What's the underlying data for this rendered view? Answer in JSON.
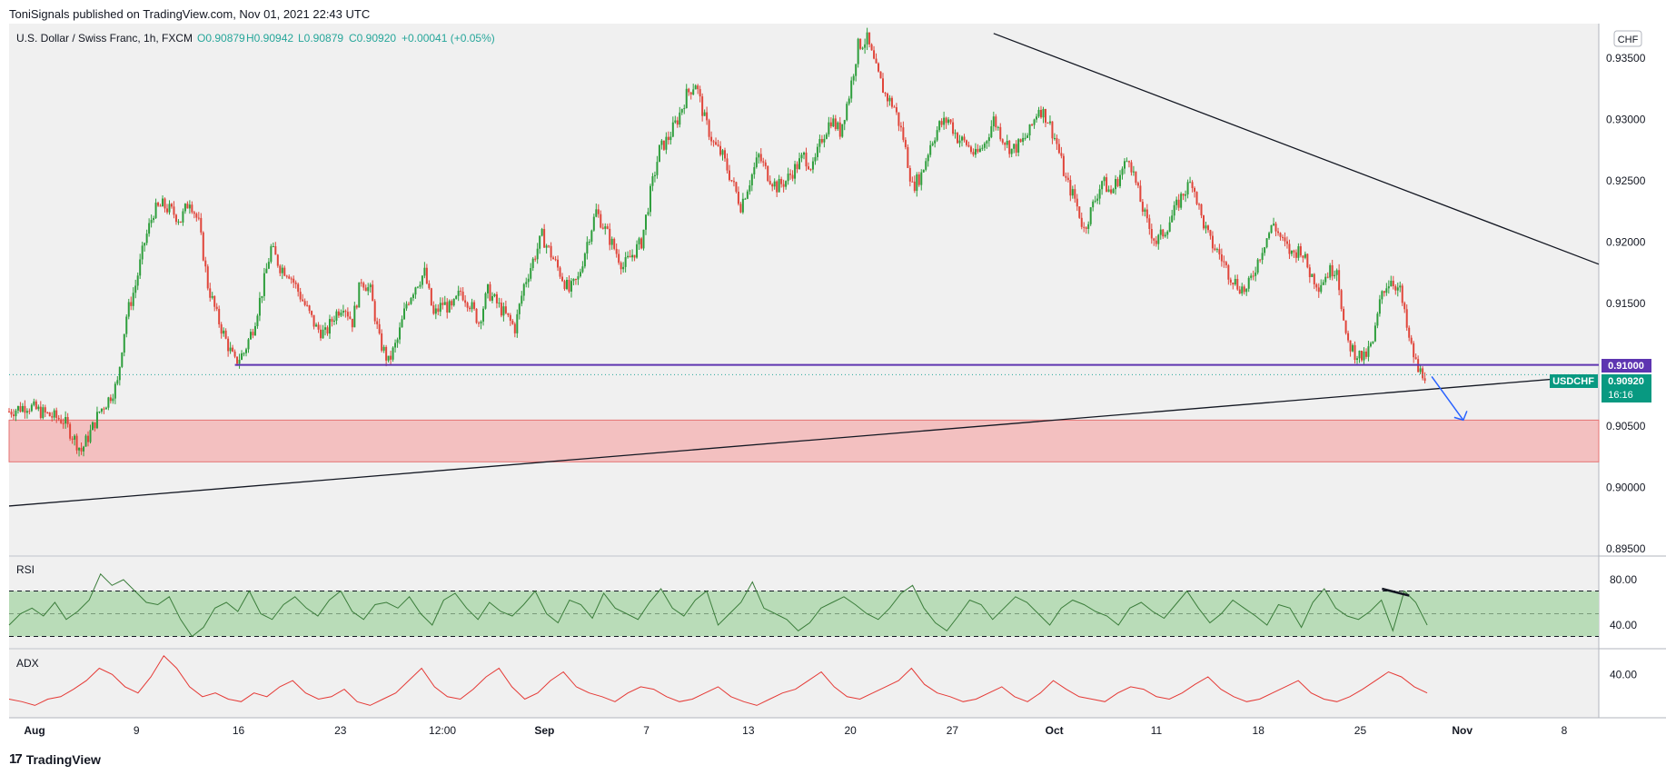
{
  "header": {
    "publish_line": "ToniSignals published on TradingView.com, Nov 01, 2021 22:43 UTC"
  },
  "footer": {
    "brand_text": "TradingView",
    "logo": "tradingview-logo-icon"
  },
  "chart_data": {
    "type": "candlestick",
    "symbol_title": "U.S. Dollar / Swiss Franc, 1h, FXCM",
    "ohlc": {
      "o_label": "O0.90879",
      "h_label": "H0.90942",
      "l_label": "L0.90879",
      "c_label": "C0.90920",
      "change_label": "+0.00041 (+0.05%)"
    },
    "currency_label": "CHF",
    "y_axis": {
      "ticks": [
        "0.93500",
        "0.93000",
        "0.92500",
        "0.92000",
        "0.91500",
        "0.91000",
        "0.90500",
        "0.90000",
        "0.89500"
      ],
      "range": [
        0.8945,
        0.9378
      ]
    },
    "x_axis": {
      "labels": [
        "Aug",
        "9",
        "16",
        "23",
        "12:00",
        "Sep",
        "7",
        "13",
        "20",
        "27",
        "Oct",
        "11",
        "18",
        "25",
        "Nov",
        "8"
      ],
      "bold": [
        "Aug",
        "Sep",
        "Oct",
        "Nov"
      ]
    },
    "price_path": [
      [
        0,
        0.9062
      ],
      [
        2,
        0.9067
      ],
      [
        4,
        0.906
      ],
      [
        6,
        0.9055
      ],
      [
        8,
        0.903
      ],
      [
        9,
        0.9045
      ],
      [
        10,
        0.9062
      ],
      [
        11,
        0.9072
      ],
      [
        12,
        0.9085
      ],
      [
        12.5,
        0.9115
      ],
      [
        13,
        0.914
      ],
      [
        14,
        0.9165
      ],
      [
        15,
        0.92
      ],
      [
        16,
        0.9225
      ],
      [
        17,
        0.923
      ],
      [
        18,
        0.9225
      ],
      [
        19,
        0.9218
      ],
      [
        20,
        0.9235
      ],
      [
        21,
        0.9215
      ],
      [
        22,
        0.9165
      ],
      [
        23,
        0.914
      ],
      [
        24,
        0.912
      ],
      [
        25,
        0.9102
      ],
      [
        26,
        0.911
      ],
      [
        27,
        0.913
      ],
      [
        28,
        0.916
      ],
      [
        29,
        0.9195
      ],
      [
        30,
        0.918
      ],
      [
        31,
        0.9175
      ],
      [
        32,
        0.916
      ],
      [
        33,
        0.9145
      ],
      [
        34,
        0.913
      ],
      [
        35,
        0.9125
      ],
      [
        36,
        0.914
      ],
      [
        37,
        0.915
      ],
      [
        38,
        0.9135
      ],
      [
        39,
        0.917
      ],
      [
        40,
        0.916
      ],
      [
        41,
        0.912
      ],
      [
        42,
        0.9102
      ],
      [
        43,
        0.912
      ],
      [
        44,
        0.915
      ],
      [
        45,
        0.9165
      ],
      [
        46,
        0.9175
      ],
      [
        47,
        0.914
      ],
      [
        48,
        0.915
      ],
      [
        49,
        0.9145
      ],
      [
        50,
        0.916
      ],
      [
        51,
        0.915
      ],
      [
        52,
        0.9135
      ],
      [
        53,
        0.916
      ],
      [
        54,
        0.915
      ],
      [
        55,
        0.914
      ],
      [
        56,
        0.913
      ],
      [
        57,
        0.9165
      ],
      [
        58,
        0.9185
      ],
      [
        59,
        0.9205
      ],
      [
        60,
        0.919
      ],
      [
        61,
        0.9175
      ],
      [
        62,
        0.916
      ],
      [
        63,
        0.917
      ],
      [
        64,
        0.92
      ],
      [
        65,
        0.9225
      ],
      [
        66,
        0.921
      ],
      [
        67,
        0.9195
      ],
      [
        68,
        0.918
      ],
      [
        69,
        0.919
      ],
      [
        70,
        0.92
      ],
      [
        71,
        0.924
      ],
      [
        72,
        0.9275
      ],
      [
        73,
        0.9285
      ],
      [
        74,
        0.93
      ],
      [
        75,
        0.932
      ],
      [
        76,
        0.933
      ],
      [
        77,
        0.93
      ],
      [
        78,
        0.928
      ],
      [
        79,
        0.927
      ],
      [
        80,
        0.925
      ],
      [
        81,
        0.923
      ],
      [
        82,
        0.925
      ],
      [
        83,
        0.927
      ],
      [
        84,
        0.9255
      ],
      [
        85,
        0.9245
      ],
      [
        86,
        0.925
      ],
      [
        87,
        0.926
      ],
      [
        88,
        0.927
      ],
      [
        89,
        0.926
      ],
      [
        90,
        0.9285
      ],
      [
        91,
        0.93
      ],
      [
        92,
        0.929
      ],
      [
        93,
        0.932
      ],
      [
        94,
        0.936
      ],
      [
        95,
        0.9365
      ],
      [
        96,
        0.934
      ],
      [
        97,
        0.932
      ],
      [
        98,
        0.931
      ],
      [
        99,
        0.9285
      ],
      [
        100,
        0.9245
      ],
      [
        101,
        0.9255
      ],
      [
        102,
        0.928
      ],
      [
        103,
        0.9295
      ],
      [
        104,
        0.93
      ],
      [
        105,
        0.9285
      ],
      [
        106,
        0.928
      ],
      [
        107,
        0.927
      ],
      [
        108,
        0.928
      ],
      [
        109,
        0.93
      ],
      [
        110,
        0.9285
      ],
      [
        111,
        0.9275
      ],
      [
        112,
        0.928
      ],
      [
        113,
        0.929
      ],
      [
        114,
        0.931
      ],
      [
        115,
        0.93
      ],
      [
        116,
        0.928
      ],
      [
        117,
        0.925
      ],
      [
        118,
        0.9235
      ],
      [
        119,
        0.921
      ],
      [
        120,
        0.923
      ],
      [
        121,
        0.925
      ],
      [
        122,
        0.924
      ],
      [
        123,
        0.9255
      ],
      [
        124,
        0.927
      ],
      [
        125,
        0.924
      ],
      [
        126,
        0.9215
      ],
      [
        127,
        0.92
      ],
      [
        128,
        0.921
      ],
      [
        129,
        0.9225
      ],
      [
        130,
        0.924
      ],
      [
        131,
        0.925
      ],
      [
        132,
        0.922
      ],
      [
        133,
        0.92
      ],
      [
        134,
        0.919
      ],
      [
        135,
        0.9175
      ],
      [
        136,
        0.9165
      ],
      [
        137,
        0.916
      ],
      [
        138,
        0.918
      ],
      [
        139,
        0.92
      ],
      [
        140,
        0.9215
      ],
      [
        141,
        0.92
      ],
      [
        142,
        0.919
      ],
      [
        143,
        0.9195
      ],
      [
        144,
        0.9175
      ],
      [
        145,
        0.9165
      ],
      [
        146,
        0.9175
      ],
      [
        147,
        0.918
      ],
      [
        148,
        0.912
      ],
      [
        149,
        0.911
      ],
      [
        150,
        0.9105
      ],
      [
        151,
        0.9118
      ],
      [
        152,
        0.916
      ],
      [
        153,
        0.917
      ],
      [
        154,
        0.916
      ],
      [
        155,
        0.912
      ],
      [
        156,
        0.9095
      ],
      [
        157,
        0.9092
      ]
    ],
    "x_span": 176,
    "levels": [
      {
        "name": "resistance-line",
        "value": 0.91,
        "x_start": 25,
        "x_end": 176,
        "label": "0.91000"
      }
    ],
    "current_price_label": "0.90920",
    "symbol_tag": "USDCHF",
    "countdown": "16:16",
    "support_zone": [
      0.9021,
      0.9055
    ],
    "trendlines": [
      {
        "name": "descending-trendline",
        "from": [
          109,
          0.937
        ],
        "to": [
          176,
          0.9182
        ]
      },
      {
        "name": "ascending-trendline",
        "from": [
          0,
          0.8985
        ],
        "to": [
          172,
          0.9089
        ]
      }
    ],
    "forecast_arrow": {
      "from": [
        157,
        0.9092
      ],
      "to": [
        161,
        0.9055
      ]
    },
    "rsi": {
      "label": "RSI",
      "ticks": [
        "80.00",
        "40.00"
      ],
      "range": [
        20,
        100
      ],
      "band": [
        30,
        70
      ],
      "midline": 50,
      "values": [
        40,
        50,
        55,
        48,
        60,
        45,
        52,
        62,
        85,
        75,
        80,
        70,
        60,
        58,
        65,
        45,
        30,
        38,
        55,
        60,
        52,
        70,
        50,
        45,
        58,
        65,
        55,
        48,
        62,
        70,
        52,
        45,
        58,
        60,
        55,
        65,
        50,
        40,
        62,
        68,
        55,
        45,
        60,
        52,
        48,
        58,
        70,
        50,
        42,
        62,
        58,
        46,
        68,
        55,
        50,
        45,
        60,
        72,
        55,
        48,
        62,
        70,
        40,
        50,
        60,
        78,
        55,
        50,
        45,
        35,
        42,
        55,
        60,
        65,
        58,
        50,
        45,
        55,
        68,
        75,
        55,
        42,
        35,
        48,
        62,
        58,
        45,
        55,
        65,
        60,
        50,
        40,
        55,
        62,
        58,
        52,
        48,
        40,
        55,
        60,
        52,
        46,
        58,
        70,
        55,
        42,
        50,
        62,
        55,
        48,
        40,
        58,
        55,
        38,
        60,
        72,
        55,
        48,
        45,
        52,
        62,
        35,
        70,
        60,
        40
      ],
      "divergence": {
        "from": [
          152,
          72
        ],
        "to": [
          155,
          66
        ]
      }
    },
    "adx": {
      "label": "ADX",
      "ticks": [
        "40.00"
      ],
      "range": [
        5,
        60
      ],
      "values": [
        20,
        18,
        15,
        20,
        22,
        28,
        35,
        45,
        40,
        30,
        25,
        38,
        55,
        45,
        30,
        22,
        25,
        20,
        18,
        25,
        22,
        30,
        35,
        25,
        20,
        22,
        28,
        18,
        15,
        20,
        25,
        35,
        45,
        30,
        22,
        20,
        28,
        38,
        45,
        30,
        20,
        25,
        35,
        42,
        30,
        25,
        22,
        18,
        25,
        30,
        28,
        22,
        18,
        20,
        25,
        30,
        22,
        18,
        15,
        20,
        25,
        28,
        35,
        42,
        30,
        22,
        20,
        25,
        30,
        35,
        45,
        32,
        25,
        22,
        18,
        20,
        25,
        30,
        22,
        18,
        25,
        35,
        28,
        22,
        20,
        18,
        25,
        30,
        28,
        22,
        20,
        25,
        32,
        38,
        28,
        22,
        18,
        20,
        25,
        30,
        35,
        25,
        20,
        18,
        22,
        28,
        35,
        42,
        38,
        30,
        25
      ],
      "x_end": 157
    }
  }
}
